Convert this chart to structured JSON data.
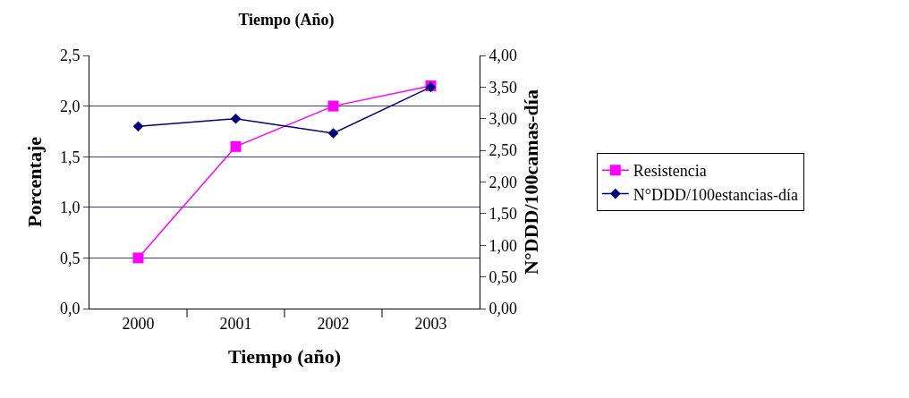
{
  "chart_data": {
    "type": "line",
    "title": "Tiempo (Año)",
    "xlabel": "Tiempo (año)",
    "ylabel": "Porcentaje",
    "y2label": "N°DDD/100camas-día",
    "categories": [
      "2000",
      "2001",
      "2002",
      "2003"
    ],
    "series": [
      {
        "name": "Resistencia",
        "color": "#ff00ff",
        "marker": "square",
        "values": [
          0.5,
          1.6,
          2.0,
          2.2
        ]
      },
      {
        "name": "N°DDD/100estancias-día",
        "color": "#000080",
        "marker": "diamond",
        "axis": "y2",
        "values": [
          2.88,
          3.0,
          2.77,
          3.5
        ]
      }
    ],
    "ylim": [
      0,
      2.5
    ],
    "yticks": [
      {
        "value": 0,
        "label": "0,0"
      },
      {
        "value": 0.5,
        "label": "0,5"
      },
      {
        "value": 1,
        "label": "1,0"
      },
      {
        "value": 1.5,
        "label": "1,5"
      },
      {
        "value": 2,
        "label": "2,0"
      },
      {
        "value": 2.5,
        "label": "2,5"
      }
    ],
    "y2lim": [
      0,
      4
    ],
    "y2ticks": [
      {
        "value": 0,
        "label": "0,00"
      },
      {
        "value": 0.5,
        "label": "0,50"
      },
      {
        "value": 1,
        "label": "1,00"
      },
      {
        "value": 1.5,
        "label": "1,50"
      },
      {
        "value": 2,
        "label": "2,00"
      },
      {
        "value": 2.5,
        "label": "2,50"
      },
      {
        "value": 3,
        "label": "3,00"
      },
      {
        "value": 3.5,
        "label": "3,50"
      },
      {
        "value": 4,
        "label": "4,00"
      }
    ],
    "grid": "y",
    "legend": "right",
    "line_style": "solid"
  }
}
